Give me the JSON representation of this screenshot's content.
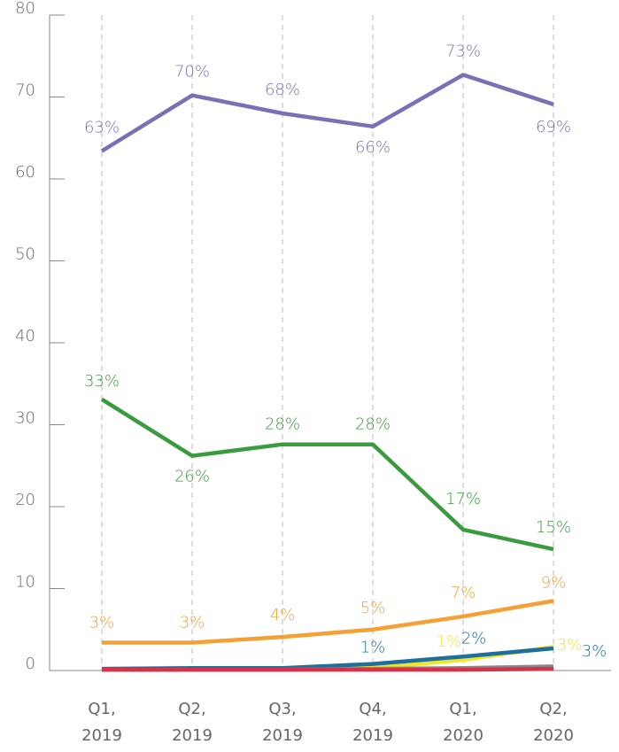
{
  "chart_data": {
    "type": "line",
    "categories": [
      "Q1, 2019",
      "Q2, 2019",
      "Q3, 2019",
      "Q4, 2019",
      "Q1, 2020",
      "Q2, 2020"
    ],
    "ylim": [
      0,
      80
    ],
    "yticks": [
      0,
      10,
      20,
      30,
      40,
      50,
      60,
      70,
      80
    ],
    "grid": true,
    "series": [
      {
        "color": "#7b6fb5",
        "values": [
          63.4,
          70.2,
          68,
          66.4,
          72.7,
          69.1
        ],
        "value_labels": [
          "63%",
          "70%",
          "68%",
          "66%",
          "73%",
          "69%"
        ]
      },
      {
        "color": "#3a9a3e",
        "values": [
          33.1,
          26.2,
          27.6,
          27.6,
          17.2,
          14.8
        ],
        "value_labels": [
          "33%",
          "26%",
          "28%",
          "28%",
          "17%",
          "15%"
        ]
      },
      {
        "color": "#f5a035",
        "values": [
          3.4,
          3.4,
          4.1,
          5,
          6.6,
          8.5
        ],
        "value_labels": [
          "3%",
          "3%",
          "4%",
          "5%",
          "7%",
          "9%"
        ]
      },
      {
        "color": "#f2e52a",
        "values": [
          0.1,
          0.1,
          0.1,
          0.3,
          1.3,
          2.9
        ],
        "value_labels": [
          null,
          null,
          null,
          null,
          "1%",
          "3%"
        ]
      },
      {
        "color": "#1e6e9e",
        "values": [
          0.2,
          0.3,
          0.3,
          0.8,
          1.7,
          2.7
        ],
        "value_labels": [
          null,
          null,
          null,
          "1%",
          "2%",
          "3%"
        ]
      },
      {
        "color": "#888888",
        "values": [
          0.1,
          0.1,
          0.1,
          0.2,
          0.3,
          0.5
        ],
        "value_labels": [
          null,
          null,
          null,
          null,
          null,
          null
        ]
      },
      {
        "color": "#d8314a",
        "values": [
          0.1,
          0.1,
          0.1,
          0.1,
          0.1,
          0.2
        ],
        "value_labels": [
          null,
          null,
          null,
          null,
          null,
          null
        ]
      }
    ]
  }
}
